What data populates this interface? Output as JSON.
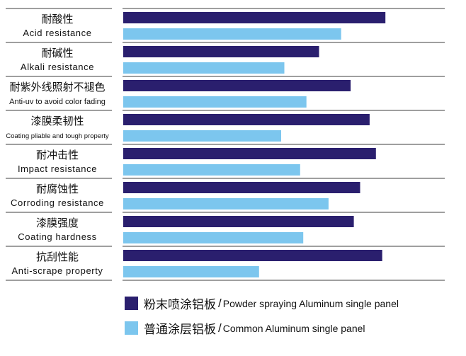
{
  "chart_data": {
    "type": "bar",
    "orientation": "horizontal",
    "categories": [
      {
        "zh": "耐酸性",
        "en": "Acid  resistance"
      },
      {
        "zh": "耐碱性",
        "en": "Alkali  resistance"
      },
      {
        "zh": "耐紫外线照射不褪色",
        "en": "Anti-uv to avoid color fading"
      },
      {
        "zh": "漆膜柔韧性",
        "en": "Coating pliable and tough property"
      },
      {
        "zh": "耐冲击性",
        "en": "Impact  resistance"
      },
      {
        "zh": "耐腐蚀性",
        "en": "Corroding  resistance"
      },
      {
        "zh": "漆膜强度",
        "en": "Coating  hardness"
      },
      {
        "zh": "抗刮性能",
        "en": "Anti-scrape  property"
      }
    ],
    "series": [
      {
        "name_zh": "粉末喷涂铝板",
        "name_en": "Powder spraying Aluminum single panel",
        "color": "#2a1f6e",
        "values": [
          83,
          62,
          72,
          78,
          80,
          75,
          73,
          82
        ]
      },
      {
        "name_zh": "普通涂层铝板",
        "name_en": "Common Aluminum single panel",
        "color": "#7cc6ee",
        "values": [
          69,
          51,
          58,
          50,
          56,
          65,
          57,
          43
        ]
      }
    ],
    "xlim": [
      0,
      100
    ],
    "grid": false,
    "legend_position": "bottom",
    "legend_separator": "/"
  }
}
